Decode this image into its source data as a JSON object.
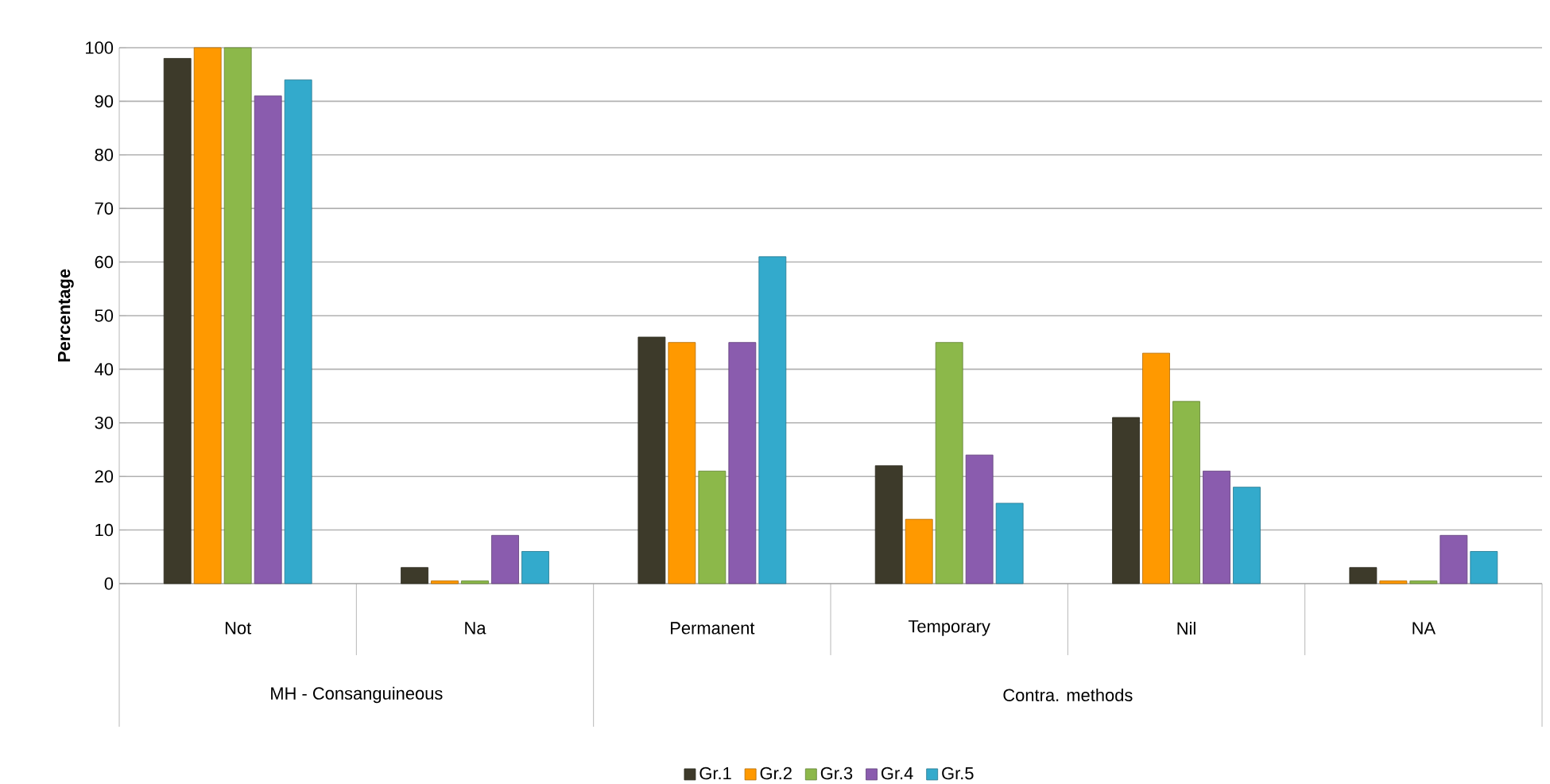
{
  "chart_data": {
    "type": "bar",
    "ylabel": "Percentage",
    "categories": [
      "Not",
      "Na",
      "Permanent",
      "Temporary",
      "Nil",
      "NA"
    ],
    "series": [
      {
        "name": "Gr.1",
        "color": "#3d3a2a",
        "values": [
          98,
          3,
          46,
          22,
          31,
          3
        ]
      },
      {
        "name": "Gr.2",
        "color": "#ff9900",
        "values": [
          100,
          0.5,
          45,
          12,
          43,
          0.5
        ]
      },
      {
        "name": "Gr.3",
        "color": "#8cb84a",
        "values": [
          100,
          0.5,
          21,
          45,
          34,
          0.5
        ]
      },
      {
        "name": "Gr.4",
        "color": "#8a5cae",
        "values": [
          91,
          9,
          45,
          24,
          21,
          9
        ]
      },
      {
        "name": "Gr.5",
        "color": "#33aacc",
        "values": [
          94,
          6,
          61,
          15,
          18,
          6
        ]
      }
    ],
    "annotations": [
      "MH - Consanguineous",
      "Contra. methods"
    ],
    "ylim": [
      0,
      100
    ],
    "yticks": [
      0,
      10,
      20,
      30,
      40,
      50,
      60,
      70,
      80,
      90,
      100
    ],
    "grid": "y",
    "legend": "bottom"
  }
}
